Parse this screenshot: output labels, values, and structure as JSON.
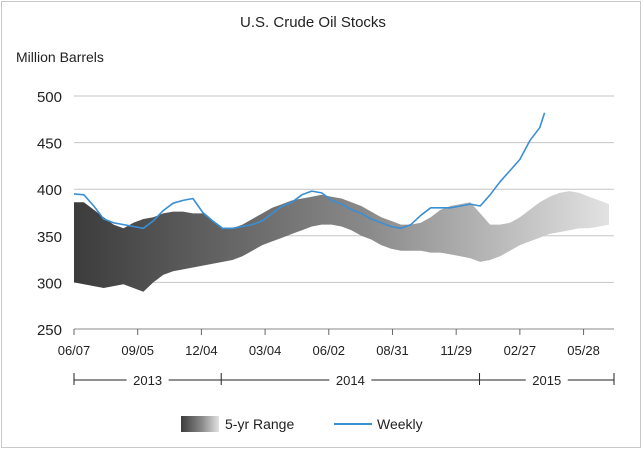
{
  "chart_data": {
    "type": "area",
    "title": "U.S. Crude Oil Stocks",
    "ylabel": "Million Barrels",
    "xlabel": "",
    "ylim": [
      250,
      500
    ],
    "yticks": [
      "500",
      "450",
      "400",
      "350",
      "300",
      "250"
    ],
    "grid": "horizontal",
    "x_tick_labels": [
      "06/07",
      "09/05",
      "12/04",
      "03/04",
      "06/02",
      "08/31",
      "11/29",
      "02/27",
      "05/28"
    ],
    "x_tick_dates": [
      "2013-06-07",
      "2013-09-05",
      "2013-12-04",
      "2014-03-04",
      "2014-06-02",
      "2014-08-31",
      "2014-11-29",
      "2015-02-27",
      "2015-05-28"
    ],
    "x_range": [
      "2013-06-07",
      "2015-07-10"
    ],
    "years": [
      {
        "label": "2013",
        "start": "2013-06-07",
        "end": "2014-01-01"
      },
      {
        "label": "2014",
        "start": "2014-01-01",
        "end": "2015-01-01"
      },
      {
        "label": "2015",
        "start": "2015-01-01",
        "end": "2015-07-10"
      }
    ],
    "legend_position": "bottom",
    "legend": [
      {
        "name": "5-yr Range",
        "kind": "range"
      },
      {
        "name": "Weekly",
        "kind": "line",
        "color": "#3a8fd4"
      }
    ],
    "range_series": {
      "name": "5-yr Range",
      "x": [
        "2013-06-07",
        "2013-06-21",
        "2013-07-05",
        "2013-07-19",
        "2013-08-02",
        "2013-08-16",
        "2013-08-30",
        "2013-09-13",
        "2013-09-27",
        "2013-10-11",
        "2013-10-25",
        "2013-11-08",
        "2013-11-22",
        "2013-12-06",
        "2013-12-20",
        "2014-01-03",
        "2014-01-17",
        "2014-01-31",
        "2014-02-14",
        "2014-02-28",
        "2014-03-14",
        "2014-03-28",
        "2014-04-11",
        "2014-04-25",
        "2014-05-09",
        "2014-05-23",
        "2014-06-06",
        "2014-06-20",
        "2014-07-04",
        "2014-07-18",
        "2014-08-01",
        "2014-08-15",
        "2014-08-29",
        "2014-09-12",
        "2014-09-26",
        "2014-10-10",
        "2014-10-24",
        "2014-11-07",
        "2014-11-21",
        "2014-12-05",
        "2014-12-19",
        "2015-01-02",
        "2015-01-16",
        "2015-01-30",
        "2015-02-13",
        "2015-02-27",
        "2015-03-13",
        "2015-03-27",
        "2015-04-10",
        "2015-04-24",
        "2015-05-08",
        "2015-05-22",
        "2015-06-05",
        "2015-06-19",
        "2015-07-03"
      ],
      "high": [
        386,
        386,
        378,
        370,
        362,
        358,
        364,
        368,
        370,
        374,
        376,
        376,
        374,
        374,
        366,
        358,
        358,
        362,
        368,
        374,
        380,
        384,
        388,
        390,
        392,
        394,
        392,
        390,
        386,
        382,
        376,
        370,
        366,
        362,
        362,
        364,
        370,
        378,
        382,
        384,
        386,
        374,
        362,
        362,
        364,
        370,
        378,
        386,
        392,
        396,
        398,
        396,
        392,
        388,
        384
      ],
      "low": [
        300,
        298,
        296,
        294,
        296,
        298,
        294,
        290,
        300,
        308,
        312,
        314,
        316,
        318,
        320,
        322,
        324,
        328,
        334,
        340,
        344,
        348,
        352,
        356,
        360,
        362,
        362,
        360,
        356,
        350,
        346,
        340,
        336,
        334,
        334,
        334,
        332,
        332,
        330,
        328,
        326,
        322,
        324,
        328,
        334,
        340,
        344,
        348,
        352,
        354,
        356,
        358,
        358,
        360,
        362
      ]
    },
    "series": [
      {
        "name": "Weekly",
        "x": [
          "2013-06-07",
          "2013-06-21",
          "2013-07-05",
          "2013-07-19",
          "2013-08-02",
          "2013-08-16",
          "2013-08-30",
          "2013-09-13",
          "2013-09-27",
          "2013-10-11",
          "2013-10-25",
          "2013-11-08",
          "2013-11-22",
          "2013-12-06",
          "2013-12-20",
          "2014-01-03",
          "2014-01-17",
          "2014-01-31",
          "2014-02-14",
          "2014-02-28",
          "2014-03-14",
          "2014-03-28",
          "2014-04-11",
          "2014-04-25",
          "2014-05-09",
          "2014-05-23",
          "2014-06-06",
          "2014-06-20",
          "2014-07-04",
          "2014-07-18",
          "2014-08-01",
          "2014-08-15",
          "2014-08-29",
          "2014-09-12",
          "2014-09-26",
          "2014-10-10",
          "2014-10-24",
          "2014-11-07",
          "2014-11-21",
          "2014-12-05",
          "2014-12-19",
          "2015-01-02",
          "2015-01-16",
          "2015-01-30",
          "2015-02-13",
          "2015-02-27",
          "2015-03-13",
          "2015-03-27",
          "2015-04-03"
        ],
        "values": [
          395,
          394,
          382,
          368,
          364,
          362,
          360,
          358,
          366,
          377,
          385,
          388,
          390,
          375,
          366,
          358,
          358,
          360,
          362,
          366,
          374,
          382,
          386,
          394,
          398,
          396,
          388,
          384,
          378,
          374,
          368,
          364,
          360,
          358,
          362,
          372,
          380,
          380,
          380,
          382,
          384,
          382,
          394,
          408,
          420,
          432,
          452,
          466,
          482
        ]
      }
    ]
  }
}
